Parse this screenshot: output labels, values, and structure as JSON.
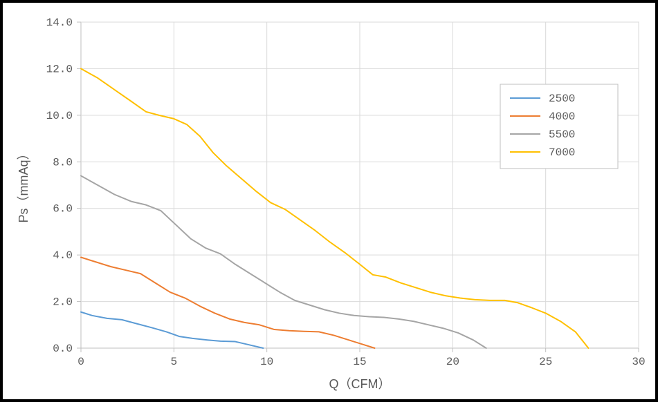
{
  "chart": {
    "type": "line",
    "background_color": "#ffffff",
    "plot_background_color": "#ffffff",
    "border_color": "#000000",
    "grid_color": "#d9d9d9",
    "plot_border_color": "#bfbfbf",
    "tick_label_color": "#595959",
    "axis_title_color": "#595959",
    "axis_title_fontsize": 18,
    "tick_fontsize": 16,
    "legend_fontsize": 16,
    "xlabel": "Q（CFM）",
    "ylabel": "Ps（mmAq）",
    "xlim": [
      0,
      30
    ],
    "ylim": [
      0.0,
      14.0
    ],
    "xtick_step": 5,
    "ytick_step": 2.0,
    "xticks": [
      0,
      5,
      10,
      15,
      20,
      25,
      30
    ],
    "yticks_labels": [
      "0.0",
      "2.0",
      "4.0",
      "6.0",
      "8.0",
      "10.0",
      "12.0",
      "14.0"
    ],
    "yticks_values": [
      0.0,
      2.0,
      4.0,
      6.0,
      8.0,
      10.0,
      12.0,
      14.0
    ],
    "line_width": 2,
    "legend_position": "right",
    "legend_border_color": "#bfbfbf",
    "series": [
      {
        "name": "2500",
        "color": "#5b9bd5",
        "points": [
          [
            0.0,
            1.55
          ],
          [
            0.6,
            1.4
          ],
          [
            1.4,
            1.28
          ],
          [
            2.2,
            1.22
          ],
          [
            3.0,
            1.05
          ],
          [
            3.8,
            0.88
          ],
          [
            4.6,
            0.7
          ],
          [
            5.3,
            0.5
          ],
          [
            6.0,
            0.42
          ],
          [
            6.8,
            0.35
          ],
          [
            7.5,
            0.3
          ],
          [
            8.3,
            0.28
          ],
          [
            9.0,
            0.15
          ],
          [
            9.8,
            0.0
          ]
        ]
      },
      {
        "name": "4000",
        "color": "#ed7d31",
        "points": [
          [
            0.0,
            3.9
          ],
          [
            0.8,
            3.7
          ],
          [
            1.6,
            3.5
          ],
          [
            2.4,
            3.35
          ],
          [
            3.2,
            3.2
          ],
          [
            4.0,
            2.8
          ],
          [
            4.8,
            2.4
          ],
          [
            5.6,
            2.15
          ],
          [
            6.4,
            1.8
          ],
          [
            7.2,
            1.5
          ],
          [
            8.0,
            1.25
          ],
          [
            8.8,
            1.1
          ],
          [
            9.6,
            1.0
          ],
          [
            10.4,
            0.8
          ],
          [
            11.2,
            0.75
          ],
          [
            12.0,
            0.72
          ],
          [
            12.8,
            0.7
          ],
          [
            13.6,
            0.55
          ],
          [
            14.4,
            0.35
          ],
          [
            15.2,
            0.15
          ],
          [
            15.8,
            0.0
          ]
        ]
      },
      {
        "name": "5500",
        "color": "#a5a5a5",
        "points": [
          [
            0.0,
            7.4
          ],
          [
            0.9,
            7.0
          ],
          [
            1.8,
            6.6
          ],
          [
            2.7,
            6.3
          ],
          [
            3.5,
            6.15
          ],
          [
            4.3,
            5.9
          ],
          [
            5.1,
            5.3
          ],
          [
            5.9,
            4.7
          ],
          [
            6.7,
            4.3
          ],
          [
            7.5,
            4.05
          ],
          [
            8.3,
            3.6
          ],
          [
            9.1,
            3.2
          ],
          [
            9.9,
            2.8
          ],
          [
            10.7,
            2.4
          ],
          [
            11.5,
            2.05
          ],
          [
            12.3,
            1.85
          ],
          [
            13.1,
            1.65
          ],
          [
            13.9,
            1.5
          ],
          [
            14.7,
            1.4
          ],
          [
            15.5,
            1.35
          ],
          [
            16.3,
            1.32
          ],
          [
            17.1,
            1.25
          ],
          [
            17.9,
            1.15
          ],
          [
            18.7,
            1.0
          ],
          [
            19.5,
            0.85
          ],
          [
            20.3,
            0.65
          ],
          [
            21.1,
            0.35
          ],
          [
            21.8,
            0.0
          ]
        ]
      },
      {
        "name": "7000",
        "color": "#ffc000",
        "points": [
          [
            0.0,
            12.0
          ],
          [
            0.9,
            11.6
          ],
          [
            1.8,
            11.1
          ],
          [
            2.7,
            10.6
          ],
          [
            3.5,
            10.15
          ],
          [
            4.2,
            10.0
          ],
          [
            5.0,
            9.85
          ],
          [
            5.7,
            9.6
          ],
          [
            6.4,
            9.1
          ],
          [
            7.1,
            8.4
          ],
          [
            7.8,
            7.85
          ],
          [
            8.6,
            7.3
          ],
          [
            9.4,
            6.75
          ],
          [
            10.2,
            6.25
          ],
          [
            11.0,
            5.95
          ],
          [
            11.8,
            5.5
          ],
          [
            12.6,
            5.05
          ],
          [
            13.4,
            4.55
          ],
          [
            14.2,
            4.1
          ],
          [
            15.0,
            3.6
          ],
          [
            15.7,
            3.15
          ],
          [
            16.4,
            3.05
          ],
          [
            17.2,
            2.8
          ],
          [
            18.0,
            2.6
          ],
          [
            18.8,
            2.4
          ],
          [
            19.6,
            2.25
          ],
          [
            20.4,
            2.15
          ],
          [
            21.2,
            2.08
          ],
          [
            22.0,
            2.05
          ],
          [
            22.8,
            2.05
          ],
          [
            23.5,
            1.95
          ],
          [
            24.2,
            1.75
          ],
          [
            25.0,
            1.5
          ],
          [
            25.8,
            1.15
          ],
          [
            26.6,
            0.7
          ],
          [
            27.3,
            0.0
          ]
        ]
      }
    ]
  }
}
